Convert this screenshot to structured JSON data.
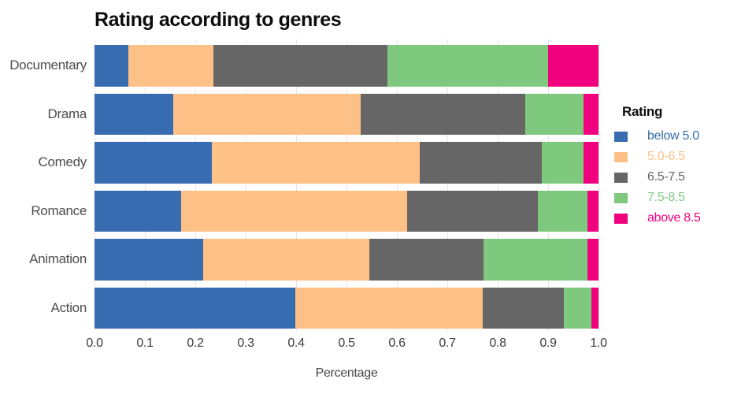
{
  "title": "Rating according to genres",
  "xlabel": "Percentage",
  "legend": {
    "title": "Rating",
    "items": [
      {
        "label": "below 5.0",
        "color": "#386cb0"
      },
      {
        "label": "5.0-6.5",
        "color": "#fdc086"
      },
      {
        "label": "6.5-7.5",
        "color": "#666666"
      },
      {
        "label": "7.5-8.5",
        "color": "#7fc97f"
      },
      {
        "label": "above 8.5",
        "color": "#f0027f"
      }
    ]
  },
  "axis": {
    "tick_labels": [
      "0.0",
      "0.1",
      "0.2",
      "0.3",
      "0.4",
      "0.5",
      "0.6",
      "0.7",
      "0.8",
      "0.9",
      "1.0"
    ],
    "grid_color": "#f3e0e0"
  },
  "chart_data": {
    "type": "bar",
    "orientation": "horizontal",
    "stacked": true,
    "title": "Rating according to genres",
    "xlabel": "Percentage",
    "xlim": [
      0,
      1
    ],
    "xticks": [
      0,
      0.1,
      0.2,
      0.3,
      0.4,
      0.5,
      0.6,
      0.7,
      0.8,
      0.9,
      1.0
    ],
    "grid": true,
    "legend_title": "Rating",
    "legend_position": "right",
    "categories": [
      "Documentary",
      "Drama",
      "Comedy",
      "Romance",
      "Animation",
      "Action"
    ],
    "series": [
      {
        "name": "below 5.0",
        "color": "#386cb0",
        "values": [
          0.067,
          0.156,
          0.233,
          0.172,
          0.215,
          0.399
        ]
      },
      {
        "name": "5.0-6.5",
        "color": "#fdc086",
        "values": [
          0.169,
          0.372,
          0.413,
          0.449,
          0.33,
          0.371
        ]
      },
      {
        "name": "6.5-7.5",
        "color": "#666666",
        "values": [
          0.346,
          0.326,
          0.241,
          0.259,
          0.227,
          0.161
        ]
      },
      {
        "name": "7.5-8.5",
        "color": "#7fc97f",
        "values": [
          0.318,
          0.116,
          0.083,
          0.098,
          0.206,
          0.055
        ]
      },
      {
        "name": "above 8.5",
        "color": "#f0027f",
        "values": [
          0.1,
          0.03,
          0.03,
          0.022,
          0.022,
          0.014
        ]
      }
    ]
  }
}
